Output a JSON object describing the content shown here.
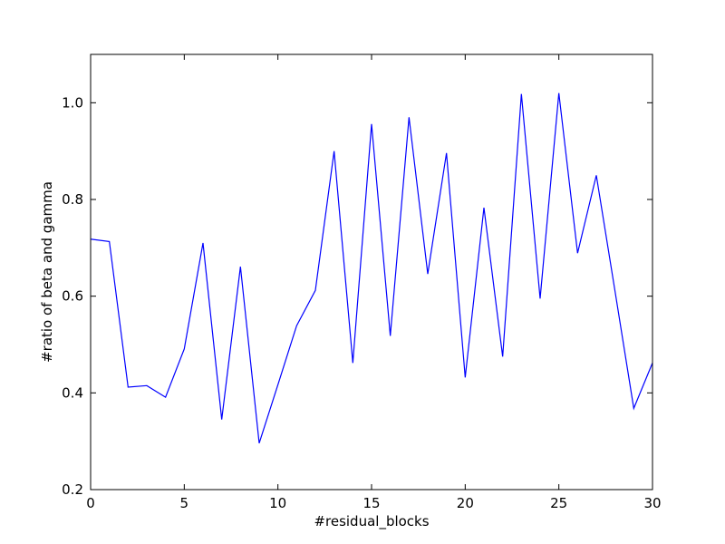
{
  "chart_data": {
    "type": "line",
    "title": "",
    "xlabel": "#residual_blocks",
    "ylabel": "#ratio of beta and gamma",
    "xlim": [
      0,
      30
    ],
    "ylim": [
      0.2,
      1.1
    ],
    "xticks": [
      0,
      5,
      10,
      15,
      20,
      25,
      30
    ],
    "yticks": [
      0.2,
      0.4,
      0.6,
      0.8,
      1.0
    ],
    "xtick_labels": [
      "0",
      "5",
      "10",
      "15",
      "20",
      "25",
      "30"
    ],
    "ytick_labels": [
      "0.2",
      "0.4",
      "0.6",
      "0.8",
      "1.0"
    ],
    "grid": false,
    "series": [
      {
        "color": "#0000ff",
        "x": [
          0,
          1,
          2,
          3,
          4,
          5,
          6,
          7,
          8,
          9,
          10,
          11,
          12,
          13,
          14,
          15,
          16,
          17,
          18,
          19,
          20,
          21,
          22,
          23,
          24,
          25,
          26,
          27,
          28,
          29,
          30
        ],
        "y": [
          0.718,
          0.713,
          0.412,
          0.415,
          0.391,
          0.491,
          0.71,
          0.345,
          0.661,
          0.296,
          0.417,
          0.539,
          0.612,
          0.9,
          0.462,
          0.956,
          0.518,
          0.97,
          0.646,
          0.896,
          0.432,
          0.783,
          0.475,
          1.018,
          0.595,
          1.02,
          0.689,
          0.85,
          0.61,
          0.368,
          0.462
        ]
      }
    ]
  }
}
